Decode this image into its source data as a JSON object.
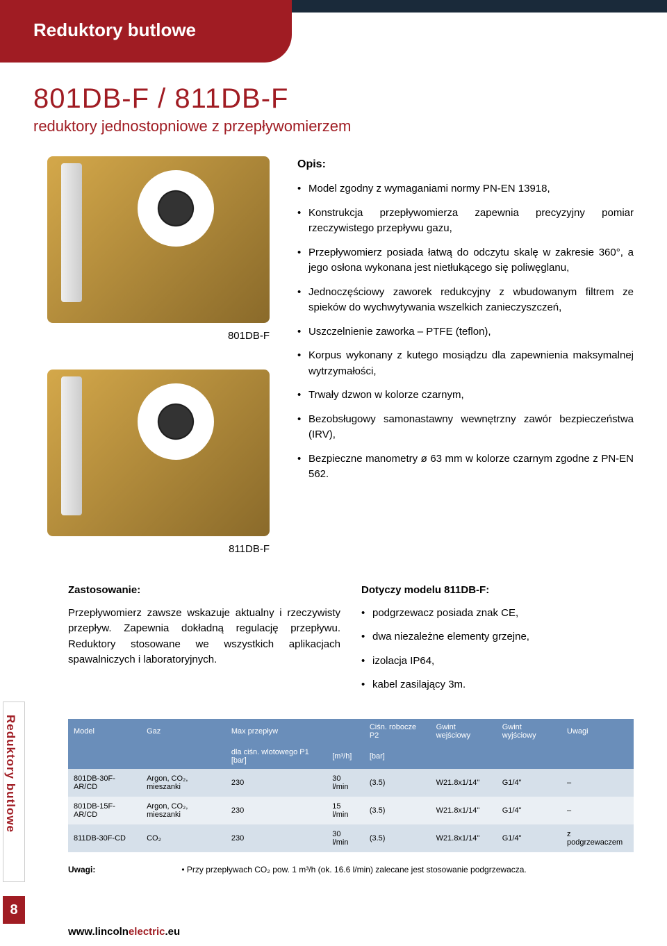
{
  "header": {
    "category": "Reduktory butlowe"
  },
  "product": {
    "title": "801DB-F / 811DB-F",
    "subtitle": "reduktory jednostopniowe z przepływomierzem",
    "img1_label": "801DB-F",
    "img2_label": "811DB-F"
  },
  "description": {
    "title": "Opis:",
    "bullets": [
      "Model zgodny z wymaganiami normy PN-EN 13918,",
      "Konstrukcja przepływomierza zapewnia precyzyjny pomiar rzeczywistego przepływu gazu,",
      "Przepływomierz posiada łatwą do odczytu skalę w zakresie 360°, a jego osłona wykonana jest nietłukącego się poliwęglanu,",
      "Jednoczęściowy zaworek redukcyjny z wbudowanym filtrem ze spieków do wychwytywania wszelkich zanieczyszczeń,",
      "Uszczelnienie zaworka – PTFE (teflon),",
      "Korpus wykonany z kutego mosiądzu dla zapewnienia maksymalnej wytrzymałości,",
      "Trwały dzwon w kolorze czarnym,",
      "Bezobsługowy samonastawny wewnętrzny zawór bezpieczeństwa (IRV),",
      "Bezpieczne manometry ø 63 mm w kolorze czarnym zgodne z PN-EN 562."
    ]
  },
  "application": {
    "title": "Zastosowanie:",
    "text": "Przepływomierz zawsze wskazuje aktualny i rzeczywisty przepływ. Zapewnia dokładną regulację przepływu. Reduktory stosowane we wszystkich aplikacjach spawalniczych i laboratoryjnych."
  },
  "variant": {
    "title": "Dotyczy modelu 811DB-F:",
    "bullets": [
      "podgrzewacz posiada znak CE,",
      "dwa niezależne elementy grzejne,",
      "izolacja IP64,",
      "kabel zasilający 3m."
    ]
  },
  "table": {
    "headers1": [
      "Model",
      "Gaz",
      "Max przepływ",
      "",
      "Ciśn. robocze P2",
      "Gwint wejściowy",
      "Gwint wyjściowy",
      "Uwagi"
    ],
    "headers2": [
      "",
      "",
      "dla ciśn. wlotowego P1 [bar]",
      "[m³/h]",
      "[bar]",
      "",
      "",
      ""
    ],
    "rows": [
      [
        "801DB-30F-AR/CD",
        "Argon, CO₂, mieszanki",
        "230",
        "30 l/min",
        "(3.5)",
        "W21.8x1/14\"",
        "G1/4\"",
        "–"
      ],
      [
        "801DB-15F-AR/CD",
        "Argon, CO₂, mieszanki",
        "230",
        "15 l/min",
        "(3.5)",
        "W21.8x1/14\"",
        "G1/4\"",
        "–"
      ],
      [
        "811DB-30F-CD",
        "CO₂",
        "230",
        "30 l/min",
        "(3.5)",
        "W21.8x1/14\"",
        "G1/4\"",
        "z podgrzewaczem"
      ]
    ]
  },
  "notes": {
    "label": "Uwagi:",
    "text": "• Przy przepływach CO₂ pow. 1 m³/h (ok. 16.6 l/min) zalecane jest stosowanie podgrzewacza."
  },
  "sidebar": {
    "tab": "Reduktory butlowe",
    "page": "8"
  },
  "footer": {
    "url_pre": "www.",
    "url_brand1": "lincoln",
    "url_brand2": "electric",
    "url_suffix": ".eu"
  }
}
